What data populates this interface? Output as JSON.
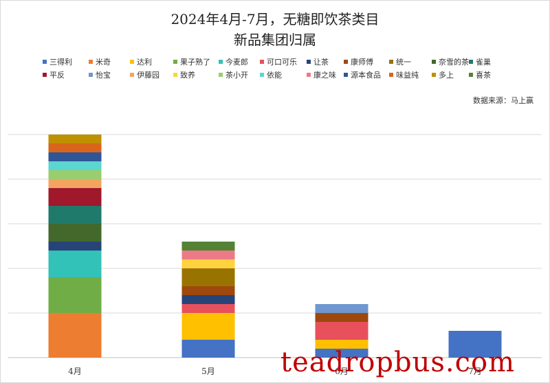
{
  "chart_data": {
    "type": "bar",
    "stacked": true,
    "title": "2024年4月-7月，无糖即饮茶类目",
    "subtitle": "新品集团归属",
    "source": "数据来源：马上赢",
    "categories": [
      "4月",
      "5月",
      "6月",
      "7月"
    ],
    "ylim": [
      0,
      25
    ],
    "grid": true,
    "legend_position": "top",
    "series": [
      {
        "name": "三得利",
        "color": "#4472C4",
        "values": [
          0,
          2,
          1,
          3
        ]
      },
      {
        "name": "米奇",
        "color": "#ED7D31",
        "values": [
          5,
          0,
          0,
          0
        ]
      },
      {
        "name": "达利",
        "color": "#FFC000",
        "values": [
          0,
          3,
          1,
          0
        ]
      },
      {
        "name": "果子熟了",
        "color": "#70AD47",
        "values": [
          4,
          0,
          0,
          0
        ]
      },
      {
        "name": "今麦郎",
        "color": "#33C2B8",
        "values": [
          3,
          0,
          0,
          0
        ]
      },
      {
        "name": "可口可乐",
        "color": "#E8505B",
        "values": [
          0,
          1,
          2,
          0
        ]
      },
      {
        "name": "让茶",
        "color": "#264478",
        "values": [
          1,
          1,
          0,
          0
        ]
      },
      {
        "name": "康师傅",
        "color": "#9E480E",
        "values": [
          0,
          1,
          1,
          0
        ]
      },
      {
        "name": "统一",
        "color": "#997300",
        "values": [
          0,
          2,
          0,
          0
        ]
      },
      {
        "name": "奈雪的茶",
        "color": "#43682B",
        "values": [
          2,
          0,
          0,
          0
        ]
      },
      {
        "name": "雀巢",
        "color": "#1F7A6C",
        "values": [
          2,
          0,
          0,
          0
        ]
      },
      {
        "name": "平反",
        "color": "#A0182C",
        "values": [
          2,
          0,
          0,
          0
        ]
      },
      {
        "name": "怡宝",
        "color": "#6F97D0",
        "values": [
          0,
          0,
          1,
          0
        ]
      },
      {
        "name": "伊藤园",
        "color": "#F4A460",
        "values": [
          1,
          0,
          0,
          0
        ]
      },
      {
        "name": "致养",
        "color": "#FFD23F",
        "values": [
          0,
          1,
          0,
          0
        ]
      },
      {
        "name": "茶小开",
        "color": "#9ACD6E",
        "values": [
          1,
          0,
          0,
          0
        ]
      },
      {
        "name": "依能",
        "color": "#5BD6D0",
        "values": [
          1,
          0,
          0,
          0
        ]
      },
      {
        "name": "康之味",
        "color": "#EC7A86",
        "values": [
          0,
          1,
          0,
          0
        ]
      },
      {
        "name": "源本食品",
        "color": "#2F5597",
        "values": [
          1,
          0,
          0,
          0
        ]
      },
      {
        "name": "味益纯",
        "color": "#D9651C",
        "values": [
          1,
          0,
          0,
          0
        ]
      },
      {
        "name": "多上",
        "color": "#BF9000",
        "values": [
          1,
          0,
          0,
          0
        ]
      },
      {
        "name": "喜茶",
        "color": "#548235",
        "values": [
          0,
          1,
          0,
          0
        ]
      }
    ]
  },
  "watermark": "teadropbus.com"
}
